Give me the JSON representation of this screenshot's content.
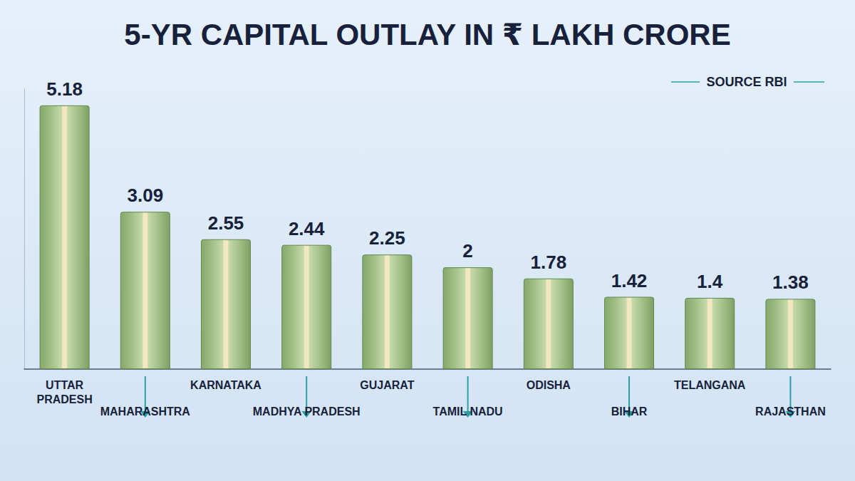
{
  "chart_data": {
    "type": "bar",
    "title": "5-YR CAPITAL OUTLAY IN ₹ LAKH CRORE",
    "source": "SOURCE RBI",
    "categories": [
      "UTTAR PRADESH",
      "MAHARASHTRA",
      "KARNATAKA",
      "MADHYA PRADESH",
      "GUJARAT",
      "TAMIL NADU",
      "ODISHA",
      "BIHAR",
      "TELANGANA",
      "RAJASTHAN"
    ],
    "values": [
      5.18,
      3.09,
      2.55,
      2.44,
      2.25,
      2,
      1.78,
      1.42,
      1.4,
      1.38
    ],
    "color": "#9dbd82",
    "ylim": [
      0,
      5.5
    ],
    "tick_labels": "x",
    "data_labels": true,
    "grid": false
  }
}
